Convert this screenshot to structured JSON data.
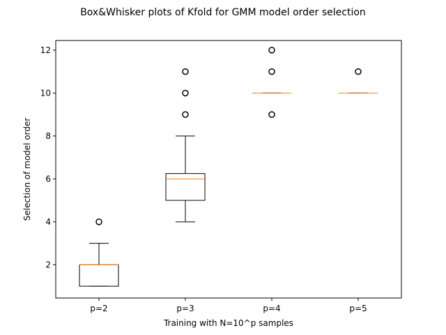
{
  "chart_data": {
    "type": "boxplot",
    "title": "Box&Whisker plots of Kfold for GMM model order selection",
    "xlabel": "Training with N=10^p samples",
    "ylabel": "Selection of model order",
    "ylim": [
      0.45,
      12.45
    ],
    "yticks": [
      2,
      4,
      6,
      8,
      10,
      12
    ],
    "categories": [
      "p=2",
      "p=3",
      "p=4",
      "p=5"
    ],
    "boxes": [
      {
        "label": "p=2",
        "whisker_low": 1,
        "q1": 1,
        "median": 2,
        "q3": 2,
        "whisker_high": 3,
        "outliers": [
          4
        ]
      },
      {
        "label": "p=3",
        "whisker_low": 4,
        "q1": 5,
        "median": 6,
        "q3": 6.25,
        "whisker_high": 8,
        "outliers": [
          9,
          10,
          11
        ]
      },
      {
        "label": "p=4",
        "whisker_low": 10,
        "q1": 10,
        "median": 10,
        "q3": 10,
        "whisker_high": 10,
        "outliers": [
          9,
          11,
          12
        ]
      },
      {
        "label": "p=5",
        "whisker_low": 10,
        "q1": 10,
        "median": 10,
        "q3": 10,
        "whisker_high": 10,
        "outliers": [
          11
        ]
      }
    ],
    "grid": false,
    "colors": {
      "box": "#000000",
      "median": "#ff7f0e",
      "outlier": "#000000"
    }
  }
}
